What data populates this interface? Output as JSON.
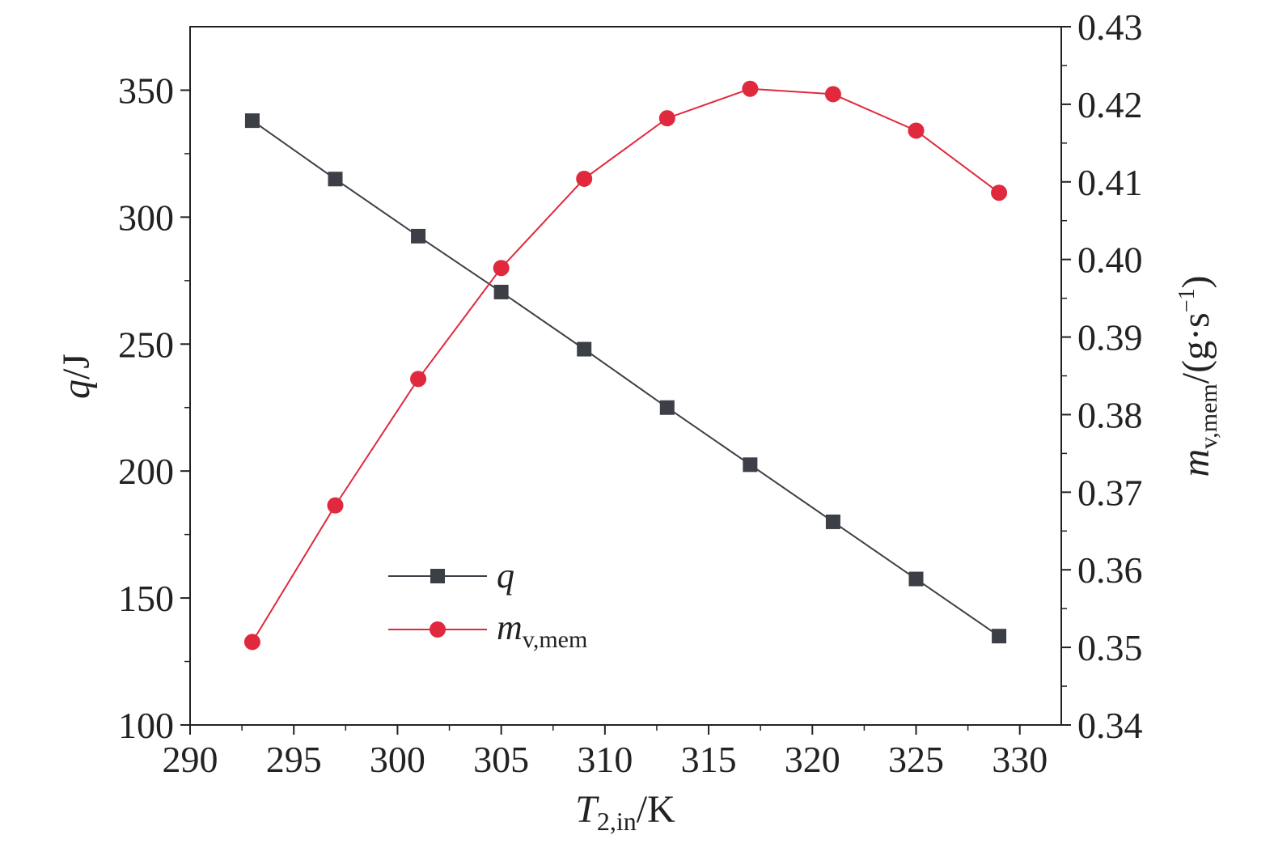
{
  "chart_data": {
    "type": "line",
    "x": [
      293,
      297,
      301,
      305,
      309,
      313,
      317,
      321,
      325,
      329
    ],
    "xlim": [
      290,
      332
    ],
    "xticks": [
      "290",
      "295",
      "300",
      "305",
      "310",
      "315",
      "320",
      "325",
      "330"
    ],
    "xlabel": {
      "main": "T",
      "sub": "2,in",
      "rest": "/K"
    },
    "y_left": {
      "ylim": [
        100,
        375
      ],
      "ticks": [
        "100",
        "150",
        "200",
        "250",
        "300",
        "350"
      ],
      "label": {
        "main": "q",
        "rest": "/J"
      }
    },
    "y_right": {
      "ylim": [
        0.34,
        0.43
      ],
      "ticks": [
        "0.34",
        "0.35",
        "0.36",
        "0.37",
        "0.38",
        "0.39",
        "0.40",
        "0.41",
        "0.42",
        "0.43"
      ],
      "label": {
        "main": "m",
        "sub": "v,mem",
        "rest": "/(g·s",
        "sup": "−1",
        "close": ")"
      }
    },
    "series": [
      {
        "name": {
          "main": "q",
          "sub": ""
        },
        "axis": "left",
        "marker": "square",
        "color": "#3d3f46",
        "values": [
          338,
          315,
          292.5,
          270.5,
          248,
          225,
          202.5,
          180,
          157.5,
          135
        ]
      },
      {
        "name": {
          "main": "m",
          "sub": "v,mem"
        },
        "axis": "right",
        "marker": "circle",
        "color": "#e0293c",
        "values": [
          0.3507,
          0.3683,
          0.3846,
          0.3989,
          0.4104,
          0.4182,
          0.422,
          0.4213,
          0.4166,
          0.4086
        ]
      }
    ],
    "legend": "lower-center",
    "grid": false
  }
}
